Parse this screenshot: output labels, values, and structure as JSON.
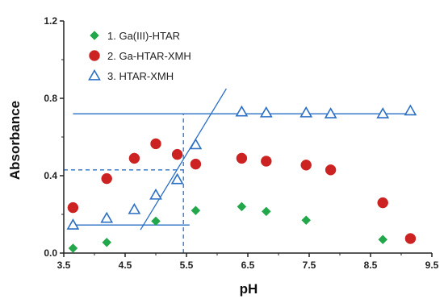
{
  "chart_data": {
    "type": "scatter",
    "title": "",
    "xlabel": "pH",
    "ylabel": "Absorbance",
    "xlim": [
      3.5,
      9.5
    ],
    "ylim": [
      0.0,
      1.2
    ],
    "xticks": [
      3.5,
      4.5,
      5.5,
      6.5,
      7.5,
      8.5,
      9.5
    ],
    "xtick_labels": [
      "3.5",
      "4.5",
      "5.5",
      "6.5",
      "7.5",
      "8.5",
      "9.5"
    ],
    "yticks": [
      0.0,
      0.4,
      0.8,
      1.2
    ],
    "ytick_labels": [
      "0.0",
      "0.4",
      "0.8",
      "1.2"
    ],
    "grid": false,
    "legend_position": "top-left",
    "series": [
      {
        "name": "1. Ga(III)-HTAR",
        "marker": "diamond",
        "color": "#22a84a",
        "x": [
          3.65,
          4.2,
          5.0,
          5.65,
          6.4,
          6.8,
          7.45,
          8.7
        ],
        "y": [
          0.025,
          0.055,
          0.165,
          0.22,
          0.24,
          0.215,
          0.17,
          0.07
        ]
      },
      {
        "name": "2. Ga-HTAR-XMH",
        "marker": "circle",
        "color": "#cc2222",
        "x": [
          3.65,
          4.2,
          4.65,
          5.0,
          5.35,
          5.65,
          6.4,
          6.8,
          7.45,
          7.85,
          8.7,
          9.15
        ],
        "y": [
          0.235,
          0.385,
          0.49,
          0.565,
          0.51,
          0.46,
          0.49,
          0.475,
          0.455,
          0.43,
          0.26,
          0.075
        ]
      },
      {
        "name": "3. HTAR-XMH",
        "marker": "triangle",
        "color": "#2a6fc4",
        "x": [
          3.65,
          4.2,
          4.65,
          5.0,
          5.35,
          5.65,
          6.4,
          6.8,
          7.45,
          7.85,
          8.7,
          9.15
        ],
        "y": [
          0.145,
          0.18,
          0.225,
          0.3,
          0.38,
          0.56,
          0.73,
          0.725,
          0.725,
          0.72,
          0.72,
          0.735
        ]
      }
    ],
    "guide_lines": [
      {
        "name": "upper-plateau-line",
        "style": "solid",
        "x": [
          3.65,
          9.15
        ],
        "y": [
          0.72,
          0.72
        ]
      },
      {
        "name": "lower-plateau-line",
        "style": "solid",
        "x": [
          3.65,
          5.55
        ],
        "y": [
          0.145,
          0.145
        ]
      },
      {
        "name": "rising-tangent-line",
        "style": "solid",
        "x": [
          4.75,
          6.15
        ],
        "y": [
          0.12,
          0.85
        ]
      },
      {
        "name": "intersection-vertical-line",
        "style": "dashed",
        "x": [
          5.45,
          5.45
        ],
        "y": [
          0.0,
          0.72
        ]
      },
      {
        "name": "intersection-horizontal-line",
        "style": "dashed",
        "x": [
          3.5,
          5.45
        ],
        "y": [
          0.43,
          0.43
        ]
      }
    ],
    "colors": {
      "axis": "#222222",
      "guide": "#2a6fc4"
    }
  }
}
